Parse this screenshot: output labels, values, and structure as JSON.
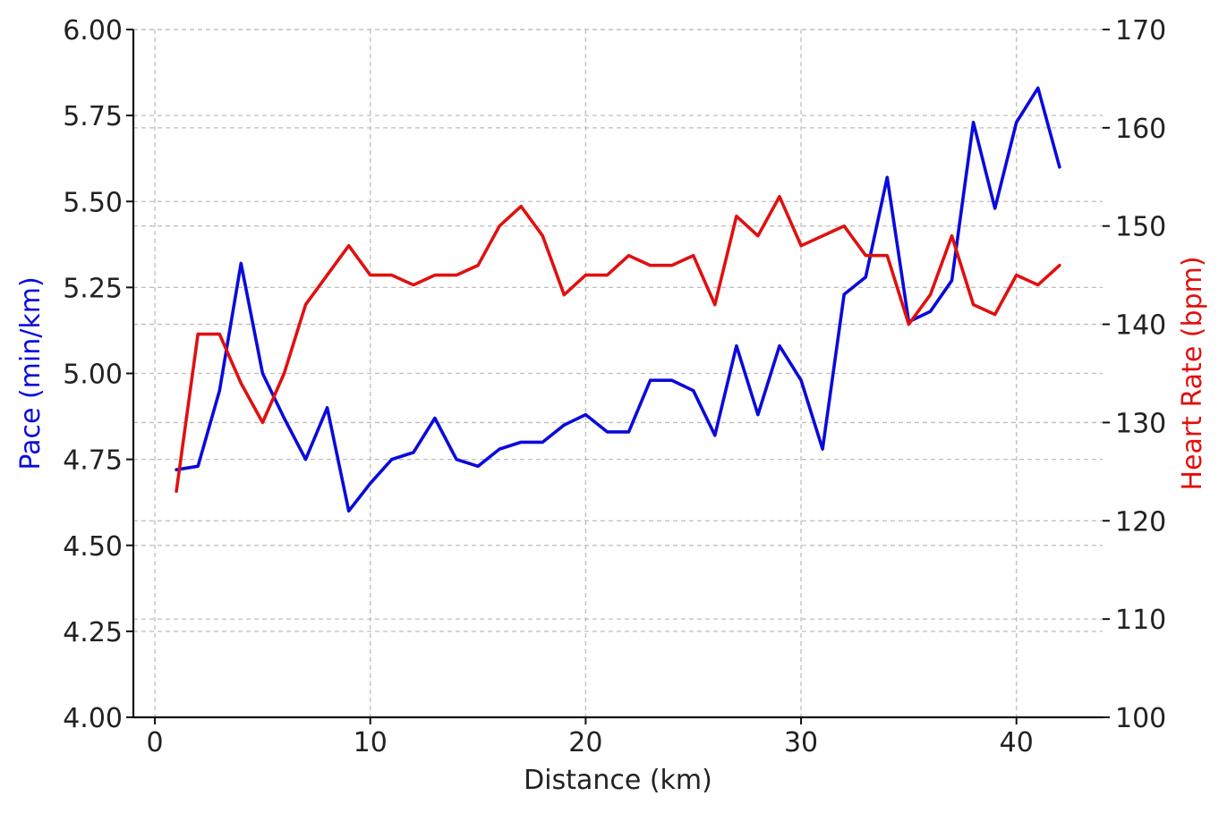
{
  "chart_data": {
    "type": "line",
    "xlabel": "Distance (km)",
    "ylabel_left": "Pace (min/km)",
    "ylabel_right": "Heart Rate (bpm)",
    "xlim": [
      -1,
      44
    ],
    "ylim_left": [
      4.0,
      6.0
    ],
    "ylim_right": [
      100,
      170
    ],
    "xticks": [
      0,
      10,
      20,
      30,
      40
    ],
    "yticks_left": [
      4.0,
      4.25,
      4.5,
      4.75,
      5.0,
      5.25,
      5.5,
      5.75,
      6.0
    ],
    "yticks_right": [
      100,
      110,
      120,
      130,
      140,
      150,
      160,
      170
    ],
    "grid": true,
    "x": [
      1,
      2,
      3,
      4,
      5,
      6,
      7,
      8,
      9,
      10,
      11,
      12,
      13,
      14,
      15,
      16,
      17,
      18,
      19,
      20,
      21,
      22,
      23,
      24,
      25,
      26,
      27,
      28,
      29,
      30,
      31,
      32,
      33,
      34,
      35,
      36,
      37,
      38,
      39,
      40,
      41,
      42
    ],
    "series": [
      {
        "name": "Pace (min/km)",
        "axis": "left",
        "color": "#0a0adc",
        "values": [
          4.72,
          4.73,
          4.95,
          5.32,
          5.0,
          4.87,
          4.75,
          4.9,
          4.6,
          4.68,
          4.75,
          4.77,
          4.87,
          4.75,
          4.73,
          4.78,
          4.8,
          4.8,
          4.85,
          4.88,
          4.83,
          4.83,
          4.98,
          4.98,
          4.95,
          4.82,
          5.08,
          4.88,
          5.08,
          4.98,
          4.78,
          5.23,
          5.28,
          5.57,
          5.15,
          5.18,
          5.27,
          5.73,
          5.48,
          5.73,
          5.83,
          5.6
        ]
      },
      {
        "name": "Heart Rate (bpm)",
        "axis": "right",
        "color": "#e01010",
        "values": [
          123,
          139,
          139,
          134,
          130,
          135,
          142,
          145,
          148,
          145,
          145,
          144,
          145,
          145,
          146,
          150,
          152,
          149,
          143,
          145,
          145,
          147,
          146,
          146,
          147,
          142,
          151,
          149,
          153,
          148,
          149,
          150,
          147,
          147,
          140,
          143,
          149,
          142,
          141,
          145,
          144,
          146
        ]
      }
    ]
  }
}
